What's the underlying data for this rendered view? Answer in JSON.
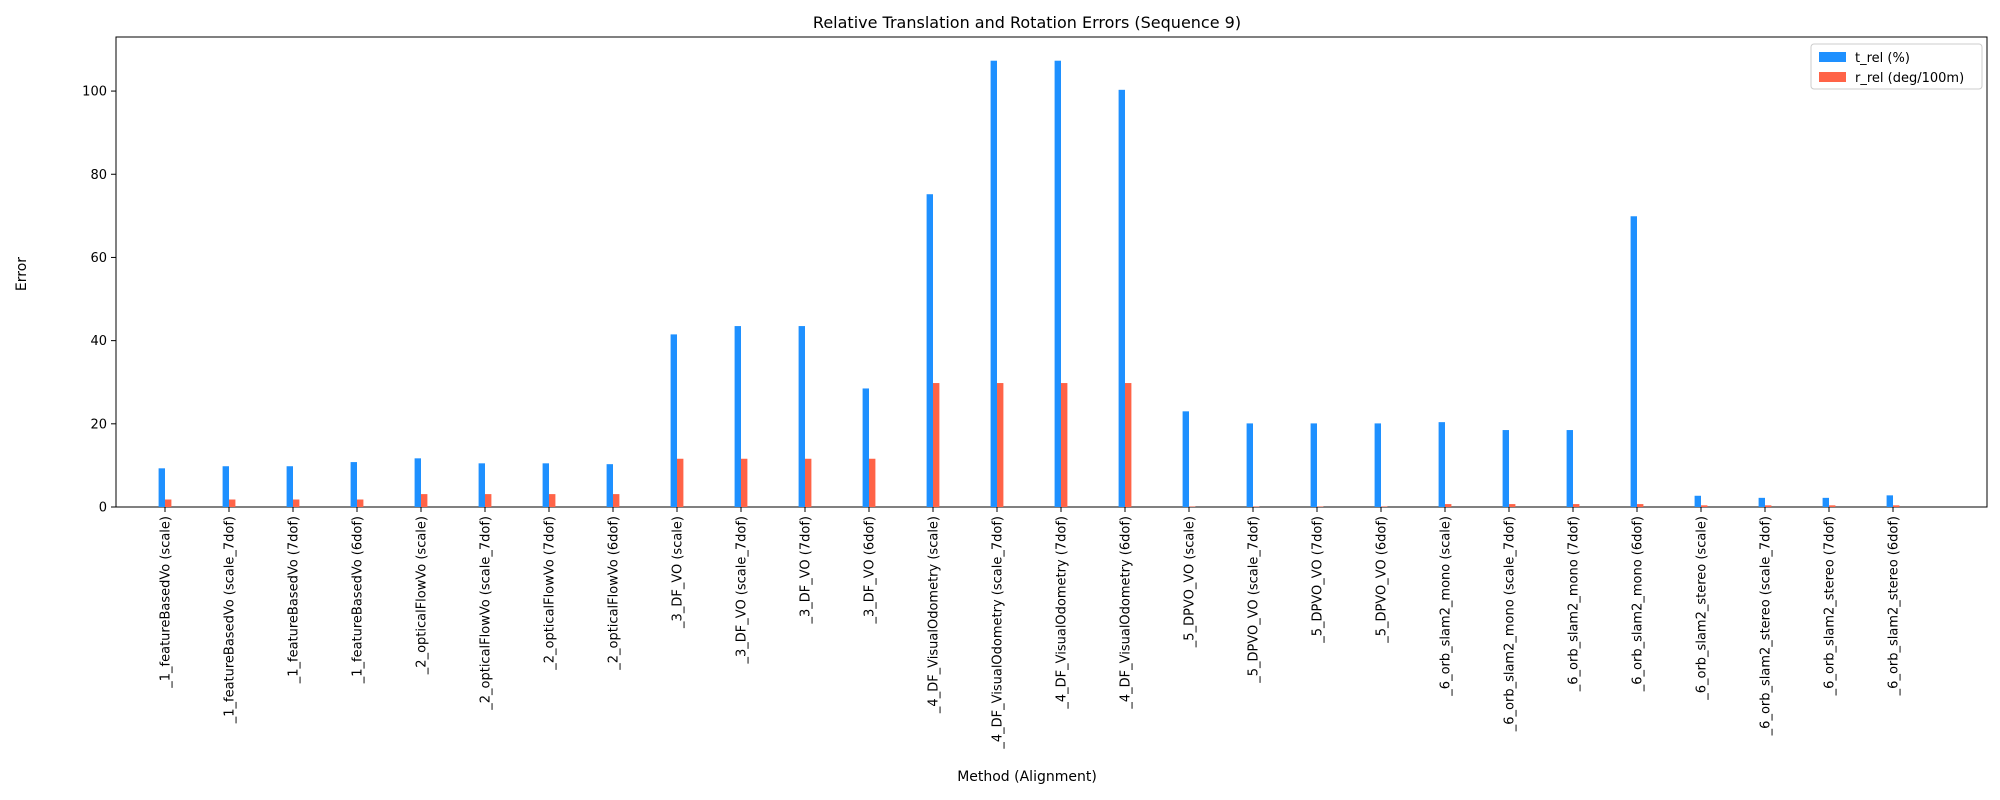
{
  "chart_data": {
    "type": "bar",
    "title": "Relative Translation and Rotation Errors (Sequence 9)",
    "xlabel": "Method (Alignment)",
    "ylabel": "Error",
    "ylim": [
      0,
      113
    ],
    "yticks": [
      0,
      20,
      40,
      60,
      80,
      100
    ],
    "grid": false,
    "legend_position": "top-right",
    "categories": [
      "_1_featureBasedVo (scale)",
      "_1_featureBasedVo (scale_7dof)",
      "_1_featureBasedVo (7dof)",
      "_1_featureBasedVo (6dof)",
      "_2_opticalFlowVo (scale)",
      "_2_opticalFlowVo (scale_7dof)",
      "_2_opticalFlowVo (7dof)",
      "_2_opticalFlowVo (6dof)",
      "_3_DF_VO (scale)",
      "_3_DF_VO (scale_7dof)",
      "_3_DF_VO (7dof)",
      "_3_DF_VO (6dof)",
      "_4_DF_VisualOdometry (scale)",
      "_4_DF_VisualOdometry (scale_7dof)",
      "_4_DF_VisualOdometry (7dof)",
      "_4_DF_VisualOdometry (6dof)",
      "_5_DPVO_VO (scale)",
      "_5_DPVO_VO (scale_7dof)",
      "_5_DPVO_VO (7dof)",
      "_5_DPVO_VO (6dof)",
      "_6_orb_slam2_mono (scale)",
      "_6_orb_slam2_mono (scale_7dof)",
      "_6_orb_slam2_mono (7dof)",
      "_6_orb_slam2_mono (6dof)",
      "_6_orb_slam2_stereo (scale)",
      "_6_orb_slam2_stereo (scale_7dof)",
      "_6_orb_slam2_stereo (7dof)",
      "_6_orb_slam2_stereo (6dof)"
    ],
    "series": [
      {
        "name": "t_rel (%)",
        "color": "#1e90ff",
        "values": [
          9.3,
          9.8,
          9.8,
          10.8,
          11.7,
          10.5,
          10.5,
          10.3,
          41.5,
          43.5,
          43.5,
          28.5,
          75.2,
          107.3,
          107.3,
          100.3,
          23.0,
          20.1,
          20.1,
          20.1,
          20.4,
          18.5,
          18.5,
          69.9,
          2.7,
          2.2,
          2.2,
          2.8
        ]
      },
      {
        "name": "r_rel (deg/100m)",
        "color": "#ff6347",
        "values": [
          1.8,
          1.8,
          1.8,
          1.8,
          3.1,
          3.1,
          3.1,
          3.1,
          11.6,
          11.6,
          11.6,
          11.6,
          29.8,
          29.8,
          29.8,
          29.8,
          0.1,
          0.1,
          0.1,
          0.1,
          0.7,
          0.7,
          0.7,
          0.7,
          0.4,
          0.4,
          0.4,
          0.4
        ]
      }
    ]
  }
}
